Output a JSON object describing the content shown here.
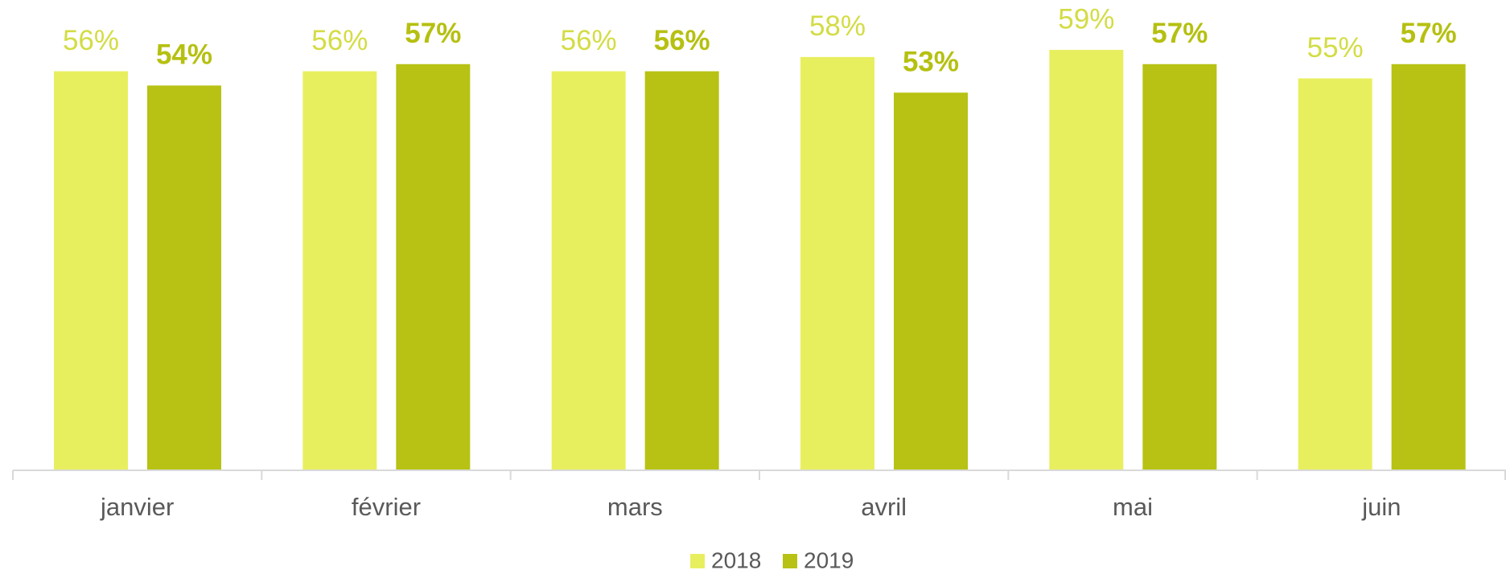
{
  "chart_data": {
    "type": "bar",
    "categories": [
      "janvier",
      "février",
      "mars",
      "avril",
      "mai",
      "juin"
    ],
    "series": [
      {
        "name": "2018",
        "color": "#e8ef5f",
        "label_color": "#d3dc44",
        "values": [
          56,
          56,
          56,
          58,
          59,
          55
        ],
        "value_labels": [
          "56%",
          "56%",
          "56%",
          "58%",
          "59%",
          "55%"
        ]
      },
      {
        "name": "2019",
        "color": "#b7c214",
        "label_color": "#b5c011",
        "values": [
          54,
          57,
          56,
          53,
          57,
          57
        ],
        "value_labels": [
          "54%",
          "57%",
          "56%",
          "53%",
          "57%",
          "57%"
        ]
      }
    ],
    "ylim": [
      0,
      66
    ],
    "legend": "bottom"
  }
}
